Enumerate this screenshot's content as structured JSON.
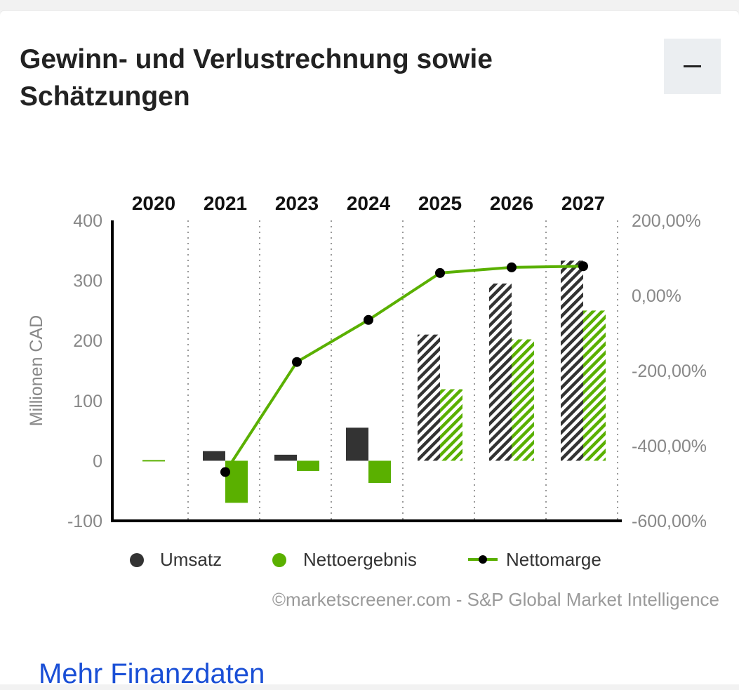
{
  "header": {
    "title": "Gewinn- und Verlustrechnung sowie Schätzungen",
    "collapse_label": "collapse"
  },
  "footer": {
    "credit": "©marketscreener.com - S&P Global Market Intelligence",
    "more_link": "Mehr Finanzdaten"
  },
  "colors": {
    "umsatz": "#333333",
    "netto": "#5ab000",
    "marge": "#5ab000"
  },
  "chart_data": {
    "type": "bar",
    "categories": [
      "2020",
      "2021",
      "2023",
      "2024",
      "2025",
      "2026",
      "2027"
    ],
    "estimated_from": "2025",
    "ylabel": "Millionen CAD",
    "ylim": [
      -100,
      400
    ],
    "yticks": [
      "400",
      "300",
      "200",
      "100",
      "0",
      "-100"
    ],
    "y2lim": [
      -600,
      200
    ],
    "y2ticks": [
      "200,00%",
      "0,00%",
      "-200,00%",
      "-400,00%",
      "-600,00%"
    ],
    "series": [
      {
        "name": "Umsatz",
        "type": "bar",
        "values": [
          0,
          16,
          10,
          55,
          210,
          295,
          333
        ]
      },
      {
        "name": "Nettoergebnis",
        "type": "bar",
        "values": [
          0,
          -70,
          -17,
          -37,
          119,
          202,
          250
        ]
      },
      {
        "name": "Nettomarge",
        "type": "line",
        "axis": "right",
        "unit": "%",
        "values": [
          null,
          -470,
          -177,
          -65,
          60,
          75,
          78
        ]
      }
    ],
    "legend": [
      "Umsatz",
      "Nettoergebnis",
      "Nettomarge"
    ],
    "legend_position": "bottom"
  }
}
